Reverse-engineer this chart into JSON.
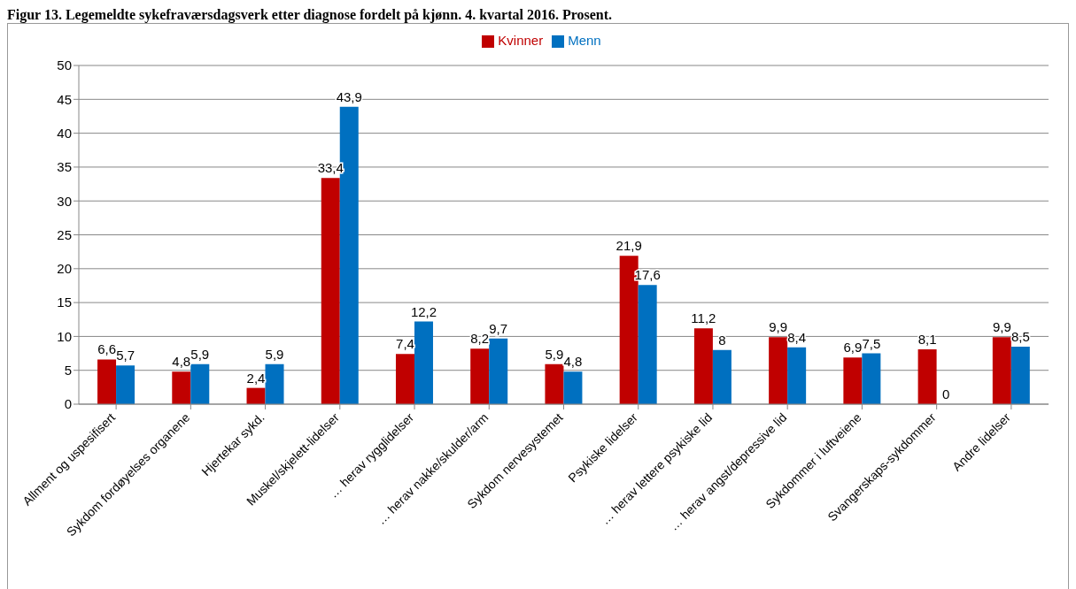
{
  "chart_data": {
    "type": "bar",
    "title": "Figur 13. Legemeldte sykefraværsdagsverk etter diagnose fordelt på kjønn. 4. kvartal 2016. Prosent.",
    "categories": [
      "Allment og uspesifisert",
      "Sykdom fordøyelses organene",
      "Hjertekar sykd.",
      "Muskel/skjelett-lidelser",
      "… herav rygglidelser",
      "… herav nakke/skulder/arm",
      "Sykdom nervesystemet",
      "Psykiske lidelser",
      "… herav lettere psykiske lid",
      "… herav angst/depressive lid",
      "Sykdommer i luftveiene",
      "Svangerskaps-sykdommer",
      "Andre lidelser"
    ],
    "series": [
      {
        "name": "Kvinner",
        "color": "#c00000",
        "values": [
          6.6,
          4.8,
          2.4,
          33.4,
          7.4,
          8.2,
          5.9,
          21.9,
          11.2,
          9.9,
          6.9,
          8.1,
          9.9
        ],
        "value_labels": [
          "6,6",
          "4,8",
          "2,4",
          "33,4",
          "7,4",
          "8,2",
          "5,9",
          "21,9",
          "11,2",
          "9,9",
          "6,9",
          "8,1",
          "9,9"
        ]
      },
      {
        "name": "Menn",
        "color": "#0070c0",
        "values": [
          5.7,
          5.9,
          5.9,
          43.9,
          12.2,
          9.7,
          4.8,
          17.6,
          8,
          8.4,
          7.5,
          0,
          8.5
        ],
        "value_labels": [
          "5,7",
          "5,9",
          "5,9",
          "43,9",
          "12,2",
          "9,7",
          "4,8",
          "17,6",
          "8",
          "8,4",
          "7,5",
          "0",
          "8,5"
        ]
      }
    ],
    "ylim": [
      0,
      50
    ],
    "yticks": [
      0,
      5,
      10,
      15,
      20,
      25,
      30,
      35,
      40,
      45,
      50
    ],
    "grid": "y",
    "legend": "top"
  }
}
